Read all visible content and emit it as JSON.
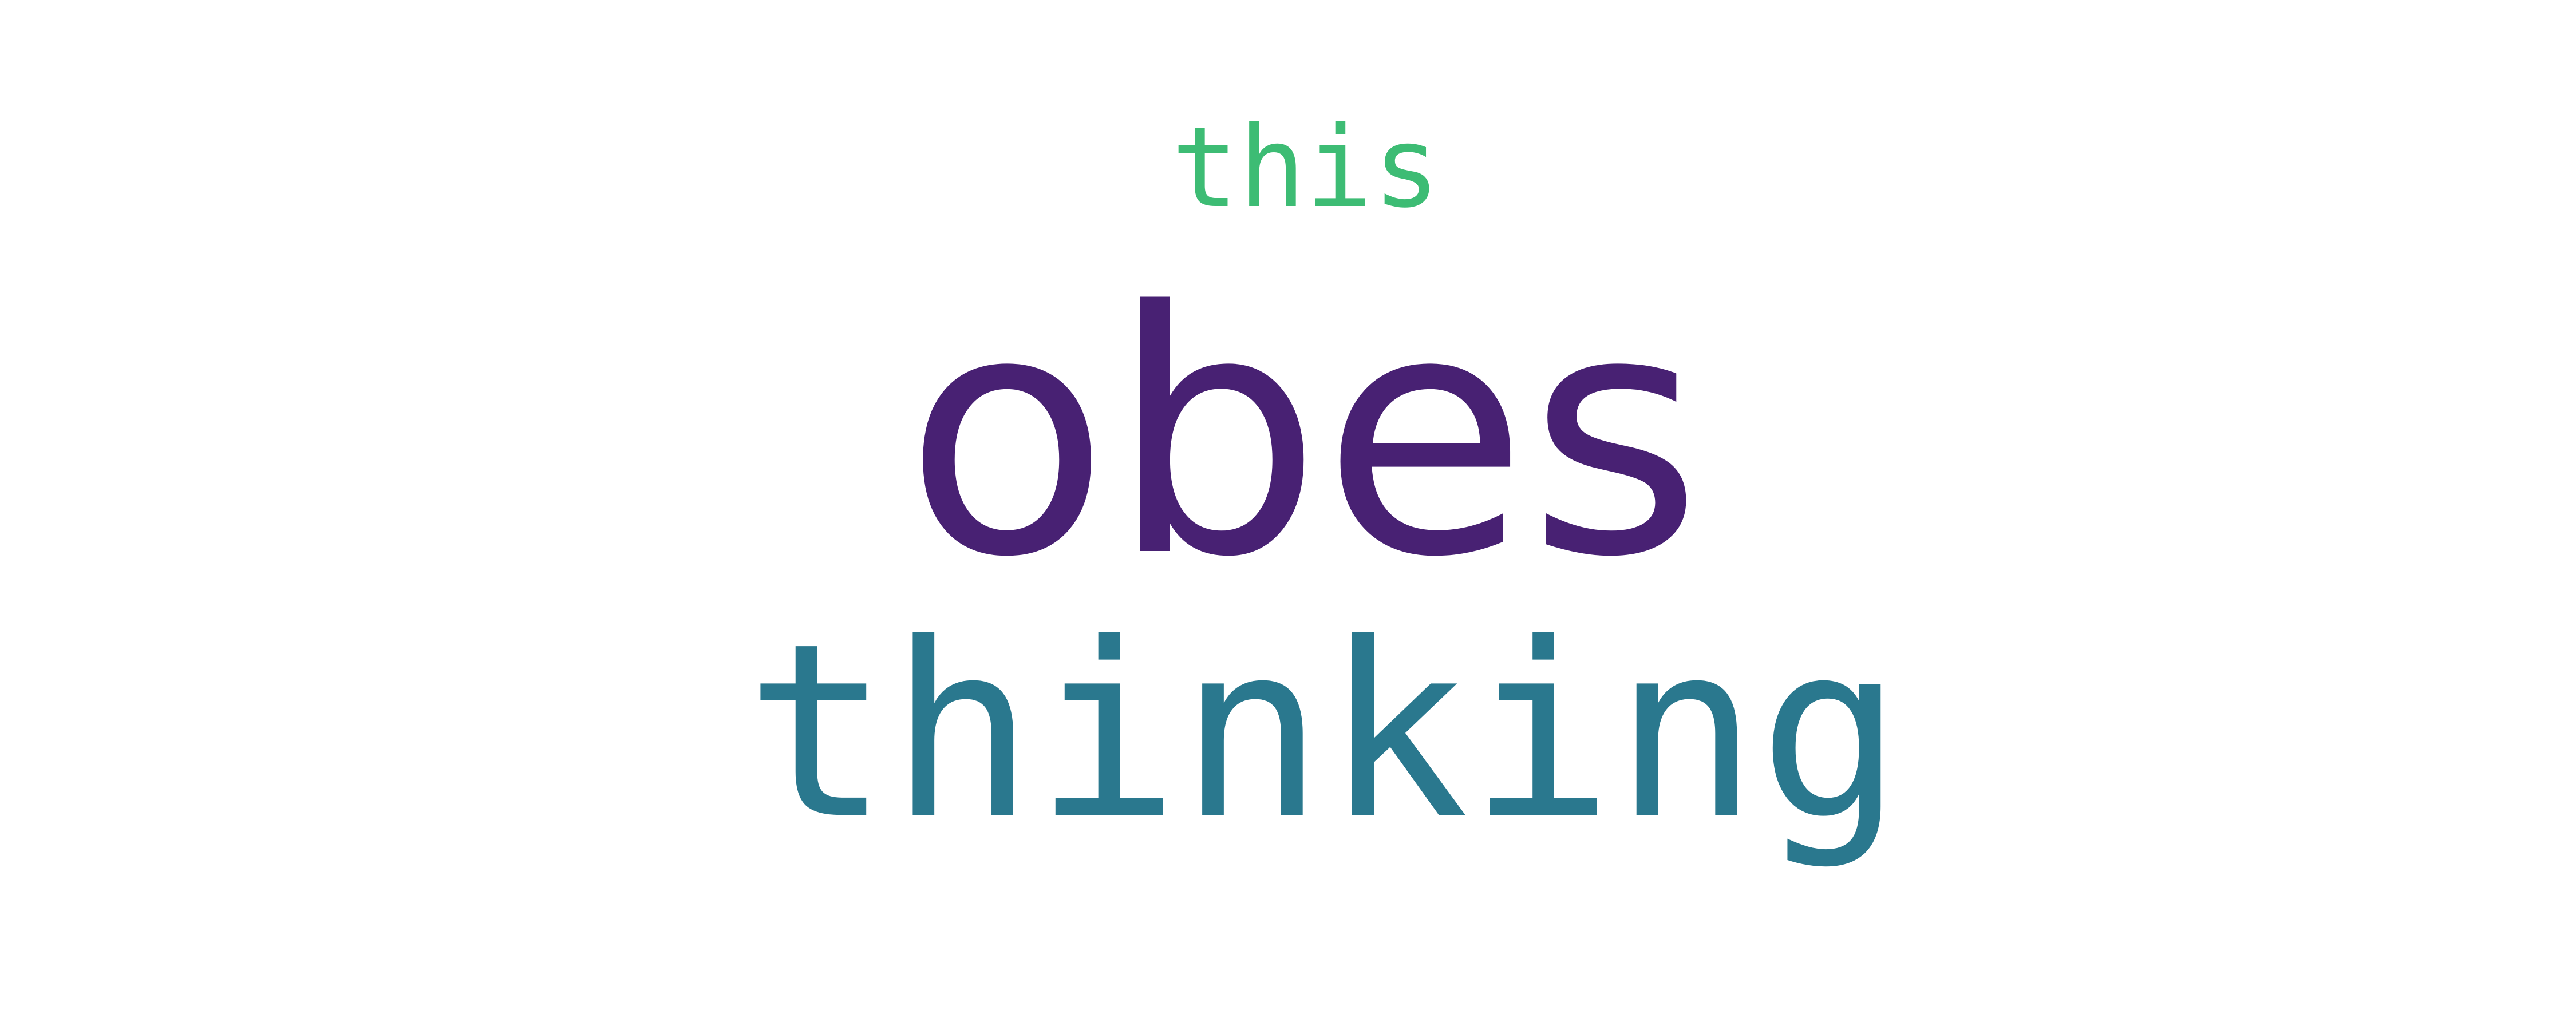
{
  "word_cloud": {
    "words": [
      {
        "text": "this",
        "color": "#3dbc74"
      },
      {
        "text": "obes",
        "color": "#482173"
      },
      {
        "text": "thinking",
        "color": "#2a788e"
      }
    ]
  }
}
